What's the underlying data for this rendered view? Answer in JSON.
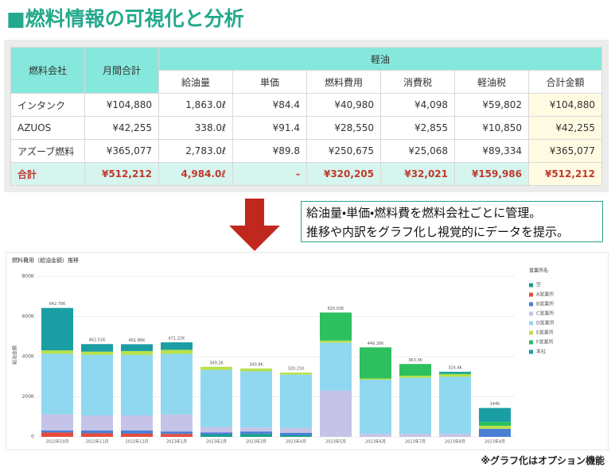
{
  "header": {
    "mark": "■",
    "title": "燃料情報の可視化と分析"
  },
  "table": {
    "corner_headers": [
      "燃料会社",
      "月間合計"
    ],
    "group_header": "軽油",
    "sub_headers": [
      "給油量",
      "単価",
      "燃料費用",
      "消費税",
      "軽油税",
      "合計金額"
    ],
    "rows": [
      [
        "インタンク",
        "¥104,880",
        "1,863.0ℓ",
        "¥84.4",
        "¥40,980",
        "¥4,098",
        "¥59,802",
        "¥104,880"
      ],
      [
        "AZUOS",
        "¥42,255",
        "338.0ℓ",
        "¥91.4",
        "¥28,550",
        "¥2,855",
        "¥10,850",
        "¥42,255"
      ],
      [
        "アズーブ燃料",
        "¥365,077",
        "2,783.0ℓ",
        "¥89.8",
        "¥250,675",
        "¥25,068",
        "¥89,334",
        "¥365,077"
      ],
      [
        "合計",
        "¥512,212",
        "4,984.0ℓ",
        "-",
        "¥320,205",
        "¥32,021",
        "¥159,986",
        "¥512,212"
      ]
    ]
  },
  "callout": [
    "給油量・単価・燃料費を燃料会社ごとに管理。",
    "推移や内訳をグラフ化し視覚的にデータを提示。"
  ],
  "footnote": "※グラフ化はオプション機能",
  "chart_data": {
    "type": "stacked_bar",
    "title": "燃料費用（給油金額）推移",
    "ylabel": "給油金額",
    "legend_title": "営業所名",
    "legend": "right",
    "categories": [
      "2022年10月",
      "2022年11月",
      "2022年12月",
      "2023年1月",
      "2023年2月",
      "2023年3月",
      "2023年4月",
      "2023年5月",
      "2023年6月",
      "2023年7月",
      "2023年8月",
      "2023年9月"
    ],
    "ylim": [
      0,
      800000
    ],
    "yticks": [
      0,
      {
        "value": 200000,
        "label": "200K"
      },
      {
        "value": 400000,
        "label": "400K"
      },
      {
        "value": 600000,
        "label": "600K"
      },
      {
        "value": 800000,
        "label": "800K"
      }
    ],
    "series": [
      {
        "name": "空",
        "color": "#16a08a",
        "values": [
          0,
          0,
          0,
          0,
          12000,
          15000,
          8000,
          0,
          0,
          0,
          0,
          0
        ]
      },
      {
        "name": "A営業所",
        "color": "#e74c3c",
        "values": [
          22000,
          18000,
          16000,
          15000,
          0,
          0,
          0,
          0,
          0,
          0,
          0,
          0
        ]
      },
      {
        "name": "B営業所",
        "color": "#4a7fd6",
        "values": [
          10000,
          14000,
          16000,
          12000,
          10000,
          12000,
          12000,
          0,
          0,
          0,
          0,
          40000
        ]
      },
      {
        "name": "C営業所",
        "color": "#c6c3e8",
        "values": [
          80000,
          75000,
          75000,
          85000,
          27000,
          20000,
          25000,
          230000,
          15000,
          15000,
          15000,
          0
        ]
      },
      {
        "name": "D営業所",
        "color": "#8fd8f0",
        "values": [
          302300,
          302000,
          302000,
          302000,
          285000,
          280000,
          265210,
          240000,
          270000,
          280000,
          285000,
          0
        ]
      },
      {
        "name": "E営業所",
        "color": "#b8e04a",
        "values": [
          17000,
          16000,
          19000,
          20000,
          15200,
          13800,
          10000,
          10000,
          6000,
          10000,
          12000,
          15000
        ]
      },
      {
        "name": "F営業所",
        "color": "#2ebf5f",
        "values": [
          0,
          0,
          0,
          0,
          0,
          0,
          0,
          140030,
          155260,
          58300,
          5000,
          20000
        ]
      },
      {
        "name": "本社",
        "color": "#1a9ea4",
        "values": [
          211480,
          37510,
          33860,
          37220,
          0,
          0,
          0,
          0,
          0,
          0,
          7400,
          69000
        ]
      }
    ],
    "total_labels": [
      "642.78K",
      "462.51K",
      "461.86K",
      "471.22K",
      "349.2K",
      "340.8K",
      "320.21K",
      "620.03K",
      "446.26K",
      "363.3K",
      "324.4K",
      "144K"
    ],
    "grid": true
  }
}
